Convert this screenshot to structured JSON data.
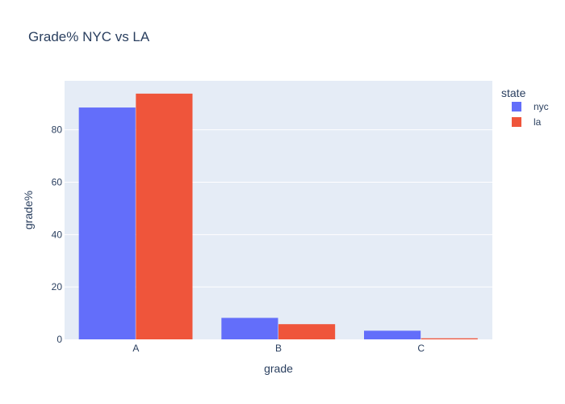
{
  "chart_data": {
    "type": "bar",
    "title": "Grade% NYC vs LA",
    "xlabel": "grade",
    "ylabel": "grade%",
    "categories": [
      "A",
      "B",
      "C"
    ],
    "series": [
      {
        "name": "nyc",
        "values": [
          88.5,
          8.2,
          3.3
        ],
        "color": "#636efa"
      },
      {
        "name": "la",
        "values": [
          93.8,
          5.8,
          0.4
        ],
        "color": "#ef553b"
      }
    ],
    "yticks": [
      0,
      20,
      40,
      60,
      80
    ],
    "ylim": [
      0,
      98.7
    ],
    "legend": {
      "title": "state",
      "position": "top-right"
    },
    "grid": true,
    "plot_background": "#e5ecf6"
  }
}
